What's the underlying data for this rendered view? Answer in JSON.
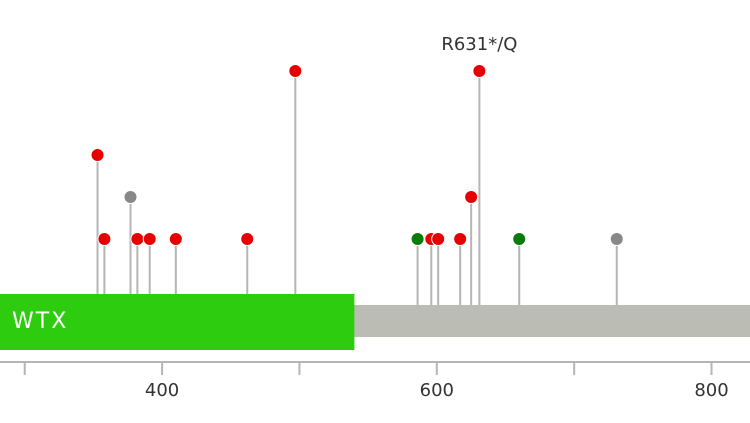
{
  "chart_data": {
    "type": "lollipop",
    "x": [
      353,
      358,
      377,
      382,
      391,
      410,
      462,
      497,
      586,
      596,
      601,
      617,
      625,
      631,
      660,
      731
    ],
    "values": [
      3,
      1,
      2,
      1,
      1,
      1,
      1,
      5,
      1,
      1,
      1,
      1,
      2,
      5,
      1,
      1
    ],
    "colors": [
      "#e60000",
      "#e60000",
      "#888888",
      "#e60000",
      "#e60000",
      "#e60000",
      "#e60000",
      "#e60000",
      "#0a7a0a",
      "#e60000",
      "#e60000",
      "#e60000",
      "#e60000",
      "#e60000",
      "#0a7a0a",
      "#888888"
    ],
    "annotation": {
      "text": "R631*/Q",
      "x": 631
    },
    "domains": [
      {
        "name": "WTX",
        "start": 282,
        "end": 540,
        "color": "#2ecc0f"
      }
    ],
    "protein_color": "#bbbdb5",
    "xlim": [
      282,
      828
    ],
    "ylim": [
      0,
      5
    ],
    "xticks": [
      400,
      600,
      800
    ],
    "xminorticks": [
      300,
      500,
      700
    ]
  }
}
